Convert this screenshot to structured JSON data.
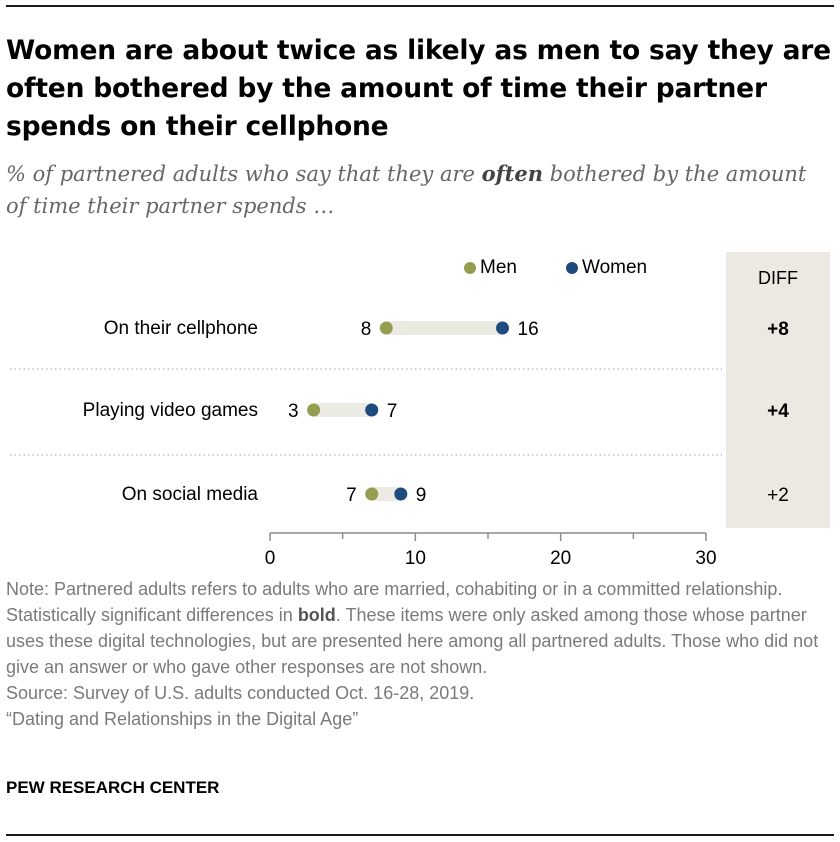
{
  "title": "Women are about twice as likely as men to say they are often bothered by the amount of time their partner spends on their cellphone",
  "subtitle": {
    "before": "% of partnered adults who say that they are ",
    "emphasis": "often",
    "after": " bothered by the amount of time their partner spends …"
  },
  "colors": {
    "men": "#959d4f",
    "women": "#1f4a7d",
    "bar": "#ecebe3",
    "diff_panel": "#ebe9e1",
    "axis": "#8c8c8c"
  },
  "chart_data": {
    "type": "dot",
    "categories": [
      "On their cellphone",
      "Playing video games",
      "On social media"
    ],
    "series": [
      {
        "name": "Men",
        "values": [
          8,
          3,
          7
        ]
      },
      {
        "name": "Women",
        "values": [
          16,
          7,
          9
        ]
      }
    ],
    "diff_header": "DIFF",
    "diff": [
      "+8",
      "+4",
      "+2"
    ],
    "diff_bold": [
      true,
      true,
      false
    ],
    "xlim": [
      0,
      30
    ],
    "xticks": [
      0,
      10,
      20,
      30
    ],
    "legend_position": "top"
  },
  "note": {
    "before": "Note: Partnered adults refers to adults who are married, cohabiting or in a committed relationship. Statistically significant differences in ",
    "bold": "bold",
    "after": ". These items were only asked among those whose partner uses these digital technologies, but are presented here among all partnered adults. Those who did not give an answer or who gave other responses are not shown."
  },
  "source": "Source: Survey of U.S. adults conducted Oct. 16-28, 2019.",
  "report": "“Dating and Relationships in the Digital Age”",
  "brand": "PEW RESEARCH CENTER"
}
